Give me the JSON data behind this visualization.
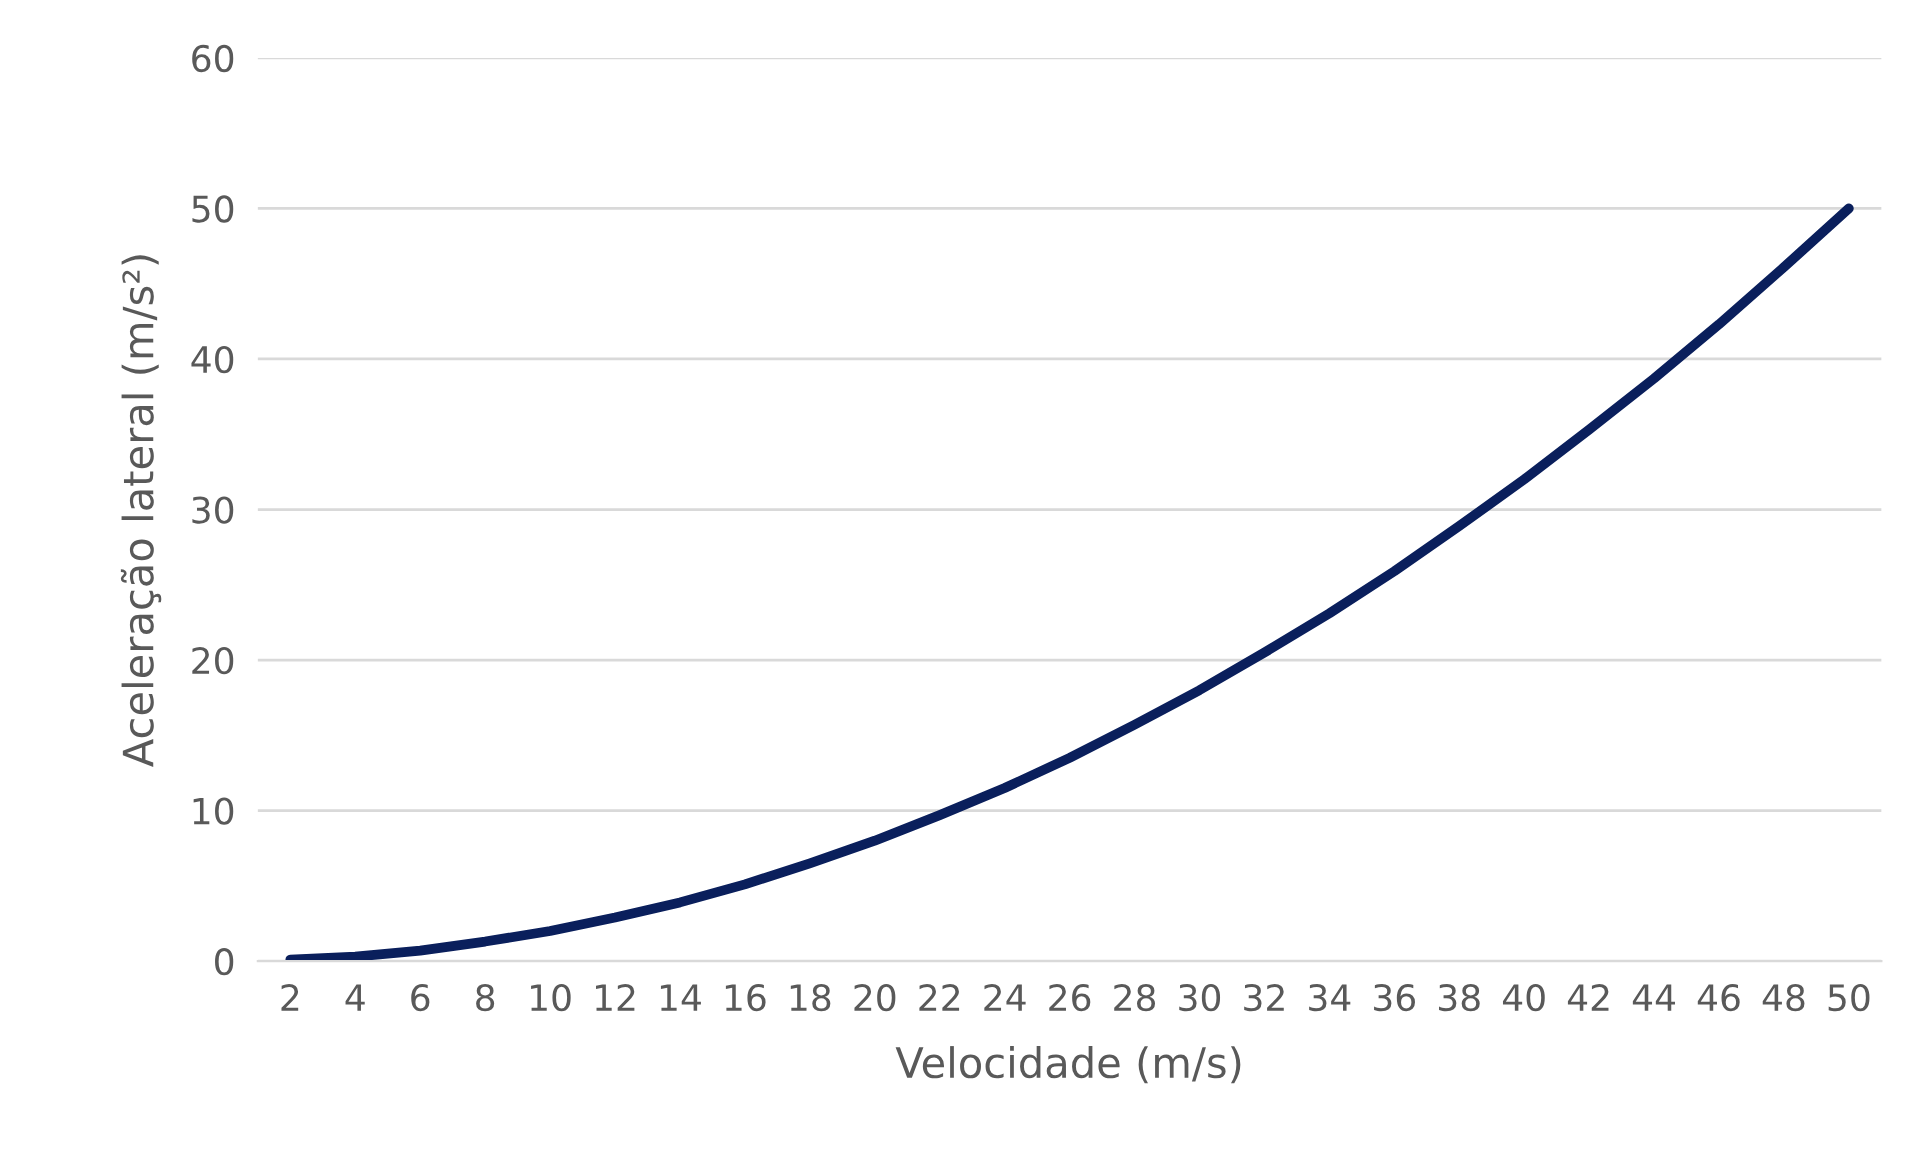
{
  "chart_data": {
    "type": "line",
    "xlabel": "Velocidade (m/s)",
    "ylabel": "Aceleração lateral (m/s²)",
    "categories": [
      "2",
      "4",
      "6",
      "8",
      "10",
      "12",
      "14",
      "16",
      "18",
      "20",
      "22",
      "24",
      "26",
      "28",
      "30",
      "32",
      "34",
      "36",
      "38",
      "40",
      "42",
      "44",
      "46",
      "48",
      "50"
    ],
    "series": [
      {
        "color": "#0a1f5c",
        "values": [
          0.1,
          0.3,
          0.7,
          1.3,
          2.0,
          2.9,
          3.9,
          5.1,
          6.5,
          8.0,
          9.7,
          11.5,
          13.5,
          15.7,
          18.0,
          20.5,
          23.1,
          25.9,
          28.9,
          32.0,
          35.3,
          38.7,
          42.3,
          46.1,
          50.0
        ]
      }
    ],
    "ylim": [
      0,
      60
    ],
    "yticks": [
      0,
      10,
      20,
      30,
      40,
      50,
      60
    ],
    "grid": "y",
    "marker": "none",
    "line_style": "solid"
  }
}
